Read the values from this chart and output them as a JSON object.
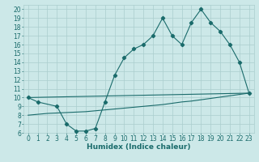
{
  "title": "",
  "xlabel": "Humidex (Indice chaleur)",
  "bg_color": "#cce8e8",
  "line_color": "#1a6b6b",
  "xlim": [
    -0.5,
    23.5
  ],
  "ylim": [
    6,
    20.5
  ],
  "yticks": [
    6,
    7,
    8,
    9,
    10,
    11,
    12,
    13,
    14,
    15,
    16,
    17,
    18,
    19,
    20
  ],
  "xticks": [
    0,
    1,
    2,
    3,
    4,
    5,
    6,
    7,
    8,
    9,
    10,
    11,
    12,
    13,
    14,
    15,
    16,
    17,
    18,
    19,
    20,
    21,
    22,
    23
  ],
  "grid_color": "#aacece",
  "series1_x": [
    0,
    1,
    3,
    4,
    5,
    6,
    7,
    8,
    9,
    10,
    11,
    12,
    13,
    14,
    15,
    16,
    17,
    18,
    19,
    20,
    21,
    22,
    23
  ],
  "series1_y": [
    10,
    9.5,
    9.0,
    7.0,
    6.2,
    6.2,
    6.5,
    9.5,
    12.5,
    14.5,
    15.5,
    16.0,
    17.0,
    19.0,
    17.0,
    16.0,
    18.5,
    20.0,
    18.5,
    17.5,
    16.0,
    14.0,
    10.5
  ],
  "series2_x": [
    0,
    1,
    2,
    3,
    4,
    5,
    6,
    7,
    8,
    9,
    10,
    11,
    12,
    13,
    14,
    15,
    16,
    17,
    18,
    19,
    20,
    21,
    22,
    23
  ],
  "series2_y": [
    8.0,
    8.1,
    8.2,
    8.25,
    8.3,
    8.35,
    8.4,
    8.5,
    8.6,
    8.7,
    8.8,
    8.9,
    9.0,
    9.1,
    9.2,
    9.35,
    9.5,
    9.6,
    9.75,
    9.9,
    10.05,
    10.2,
    10.35,
    10.5
  ],
  "series3_x": [
    0,
    23
  ],
  "series3_y": [
    10.0,
    10.5
  ],
  "xlabel_fontsize": 6.5,
  "tick_fontsize": 5.5
}
